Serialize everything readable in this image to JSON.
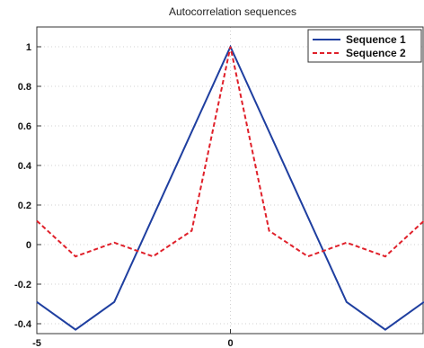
{
  "chart_data": {
    "type": "line",
    "title": "Autocorrelation sequences",
    "xlabel": "",
    "ylabel": "",
    "xlim": [
      -5,
      5
    ],
    "ylim": [
      -0.45,
      1.1
    ],
    "grid": true,
    "legend_position": "top-right",
    "x_ticks": [
      -5,
      0
    ],
    "x_tick_labels": [
      "-5",
      "0"
    ],
    "y_ticks": [
      -0.4,
      -0.2,
      0,
      0.2,
      0.4,
      0.6,
      0.8,
      1
    ],
    "y_tick_labels": [
      "-0.4",
      "-0.2",
      "0",
      "0.2",
      "0.4",
      "0.6",
      "0.8",
      "1"
    ],
    "x": [
      -5,
      -4,
      -3,
      -2,
      -1,
      0,
      1,
      2,
      3,
      4,
      5
    ],
    "series": [
      {
        "name": "Sequence 1",
        "color": "#1f3fa0",
        "style": "solid",
        "values": [
          -0.29,
          -0.43,
          -0.29,
          0.14,
          0.57,
          1.0,
          0.57,
          0.14,
          -0.29,
          -0.43,
          -0.29
        ]
      },
      {
        "name": "Sequence 2",
        "color": "#e0202a",
        "style": "dashed",
        "values": [
          0.12,
          -0.06,
          0.01,
          -0.06,
          0.07,
          1.0,
          0.07,
          -0.06,
          0.01,
          -0.06,
          0.12
        ]
      }
    ]
  }
}
